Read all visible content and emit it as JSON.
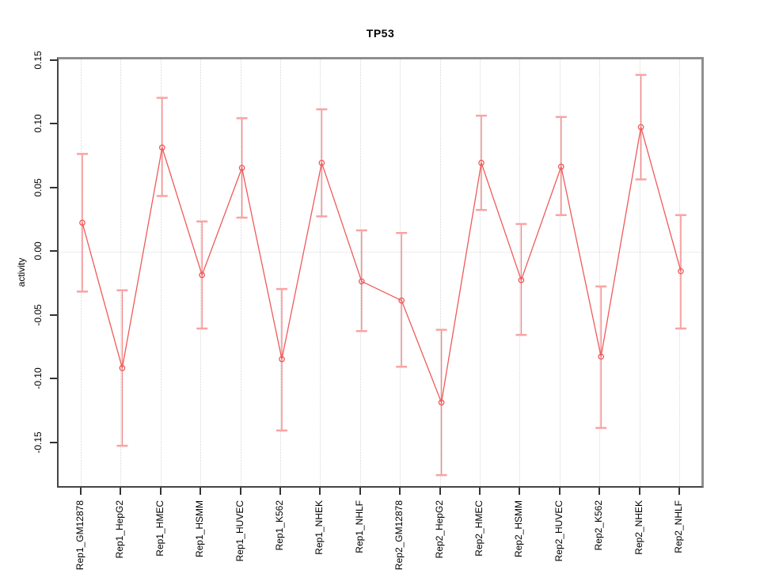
{
  "title": "TP53",
  "chart_data": {
    "type": "line",
    "title": "TP53",
    "xlabel": "",
    "ylabel": "activity",
    "categories": [
      "Rep1_GM12878",
      "Rep1_HepG2",
      "Rep1_HMEC",
      "Rep1_HSMM",
      "Rep1_HUVEC",
      "Rep1_K562",
      "Rep1_NHEK",
      "Rep1_NHLF",
      "Rep2_GM12878",
      "Rep2_HepG2",
      "Rep2_HMEC",
      "Rep2_HSMM",
      "Rep2_HUVEC",
      "Rep2_K562",
      "Rep2_NHEK",
      "Rep2_NHLF"
    ],
    "series": [
      {
        "name": "activity",
        "values": [
          0.024,
          -0.09,
          0.083,
          -0.017,
          0.067,
          -0.083,
          0.071,
          -0.022,
          -0.037,
          -0.117,
          0.071,
          -0.021,
          0.068,
          -0.081,
          0.099,
          -0.014
        ],
        "error_high": [
          0.078,
          -0.029,
          0.122,
          0.025,
          0.106,
          -0.028,
          0.113,
          0.018,
          0.016,
          -0.06,
          0.108,
          0.023,
          0.107,
          -0.026,
          0.14,
          0.03
        ],
        "error_low": [
          -0.03,
          -0.151,
          0.045,
          -0.059,
          0.028,
          -0.139,
          0.029,
          -0.061,
          -0.089,
          -0.174,
          0.034,
          -0.064,
          0.03,
          -0.137,
          0.058,
          -0.059
        ]
      }
    ],
    "ylim": [
      -0.186,
      0.152
    ],
    "yticks": [
      -0.15,
      -0.1,
      -0.05,
      0.0,
      0.05,
      0.1,
      0.15
    ],
    "ytick_labels": [
      "-0.15",
      "-0.10",
      "-0.05",
      "0.00",
      "0.05",
      "0.10",
      "0.15"
    ],
    "grid": "vertical dotted gridlines at each category; dotted horizontal line at 0",
    "legend": "none",
    "marker": "open-circle",
    "colors": {
      "series_line": "#ef5a5a",
      "point_stroke": "#ef5a5a",
      "error_bar": "#f58787",
      "error_cap": "#f9a3a3",
      "gridline": "#d8d8d8",
      "zero_line": "#dcdcdc",
      "box_top_right": "#8f8f8f",
      "box_bottom_left": "#454545",
      "tick": "#333333",
      "text": "#000000"
    }
  }
}
